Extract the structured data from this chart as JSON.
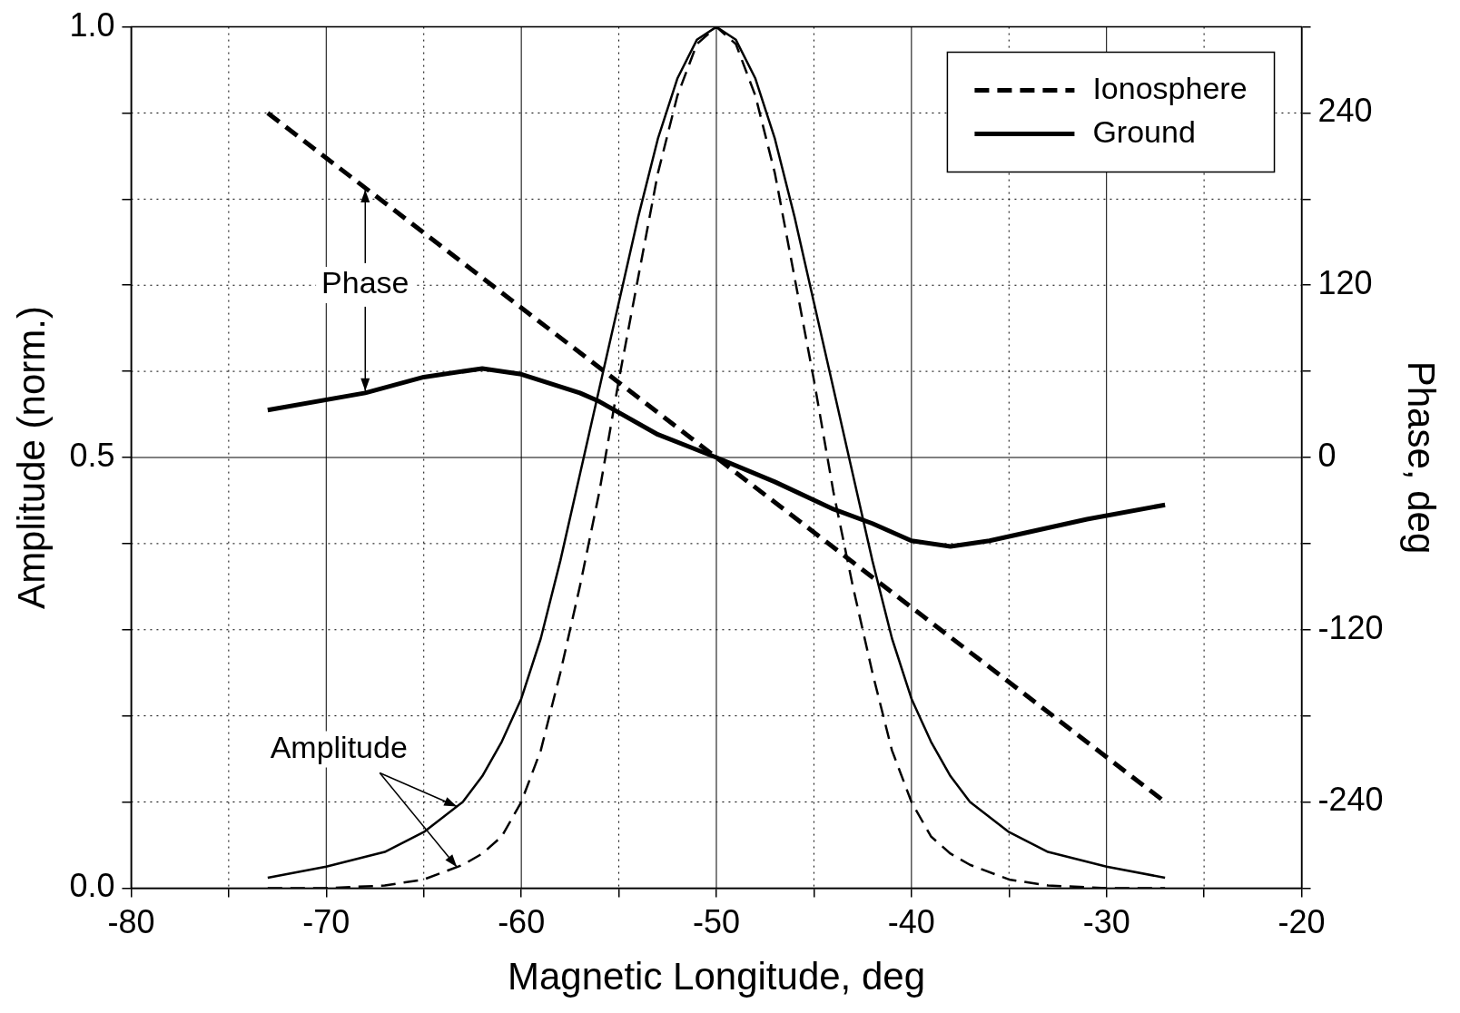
{
  "chart_data": {
    "type": "line",
    "xlabel": "Magnetic Longitude, deg",
    "ylabel": "Amplitude (norm.)",
    "y2label": "Phase, deg",
    "xlim": [
      -80,
      -20
    ],
    "xticks": [
      -80,
      {
        "value": -75,
        "label": null
      },
      -70,
      {
        "value": -65,
        "label": null
      },
      -60,
      {
        "value": -55,
        "label": null
      },
      -50,
      {
        "value": -45,
        "label": null
      },
      -40,
      {
        "value": -35,
        "label": null
      },
      -30,
      {
        "value": -25,
        "label": null
      },
      -20
    ],
    "ylim": [
      0,
      1
    ],
    "yticks": [
      {
        "value": 0,
        "label": "0.0"
      },
      {
        "value": 0.1,
        "label": null
      },
      {
        "value": 0.2,
        "label": null
      },
      {
        "value": 0.3,
        "label": null
      },
      {
        "value": 0.4,
        "label": null
      },
      {
        "value": 0.5,
        "label": "0.5"
      },
      {
        "value": 0.6,
        "label": null
      },
      {
        "value": 0.7,
        "label": null
      },
      {
        "value": 0.8,
        "label": null
      },
      {
        "value": 0.9,
        "label": null
      },
      {
        "value": 1,
        "label": "1.0"
      }
    ],
    "y2lim": [
      -300,
      300
    ],
    "y2ticks": [
      {
        "value": -300,
        "label": null
      },
      -240,
      {
        "value": -180,
        "label": null
      },
      -120,
      {
        "value": -60,
        "label": null
      },
      0,
      {
        "value": 60,
        "label": null
      },
      120,
      {
        "value": 180,
        "label": null
      },
      240,
      {
        "value": 300,
        "label": null
      }
    ],
    "grid": true,
    "legend": "top right",
    "series": [
      {
        "name": "Ionosphere",
        "color": "#000000",
        "line_style": "dashed",
        "axis": "y2",
        "x": [
          -73,
          -50,
          -27
        ],
        "values": [
          240,
          0,
          -240
        ]
      },
      {
        "name": "Ground",
        "color": "#000000",
        "line_style": "solid",
        "axis": "y2",
        "x": [
          -73,
          -68,
          -65,
          -62,
          -60,
          -57,
          -56,
          -53,
          -50,
          -47,
          -44,
          -42,
          -40,
          -38,
          -36,
          -34,
          -31,
          -27
        ],
        "values": [
          33,
          45,
          56,
          62,
          58,
          45,
          39,
          16,
          0,
          -17,
          -36,
          -46,
          -58,
          -62,
          -58,
          -52,
          -43,
          -33
        ]
      },
      {
        "color": "#000000",
        "line_style": "dashed",
        "x": [
          -73,
          -70,
          -67,
          -65,
          -63,
          -62,
          -61,
          -60,
          -59,
          -58,
          -57,
          -56,
          -55,
          -54,
          -53,
          -52,
          -51,
          -50,
          -49,
          -48,
          -47,
          -46,
          -45,
          -44,
          -43,
          -42,
          -41,
          -40,
          -39,
          -38,
          -37,
          -35,
          -33,
          -30,
          -27
        ],
        "values": [
          0,
          0,
          0.003,
          0.01,
          0.027,
          0.04,
          0.06,
          0.1,
          0.16,
          0.25,
          0.35,
          0.46,
          0.59,
          0.71,
          0.83,
          0.92,
          0.98,
          1,
          0.98,
          0.92,
          0.83,
          0.71,
          0.59,
          0.46,
          0.35,
          0.25,
          0.16,
          0.1,
          0.06,
          0.04,
          0.027,
          0.01,
          0.003,
          0,
          0
        ]
      },
      {
        "color": "#000000",
        "line_style": "solid",
        "x": [
          -73,
          -70,
          -67,
          -65,
          -63,
          -62,
          -61,
          -60,
          -59,
          -58,
          -57,
          -56,
          -55,
          -54,
          -53,
          -52,
          -51,
          -50,
          -49,
          -48,
          -47,
          -46,
          -45,
          -44,
          -43,
          -42,
          -41,
          -40,
          -39,
          -38,
          -37,
          -35,
          -33,
          -30,
          -27
        ],
        "values": [
          0.012,
          0.025,
          0.042,
          0.065,
          0.1,
          0.13,
          0.17,
          0.22,
          0.29,
          0.38,
          0.48,
          0.58,
          0.68,
          0.78,
          0.87,
          0.94,
          0.985,
          1,
          0.985,
          0.94,
          0.87,
          0.78,
          0.68,
          0.58,
          0.48,
          0.38,
          0.29,
          0.22,
          0.17,
          0.13,
          0.1,
          0.065,
          0.042,
          0.025,
          0.012
        ]
      }
    ],
    "annotations": [
      {
        "text": "Phase",
        "x": -68,
        "y": 0.575
      },
      {
        "text": "Amplitude",
        "x": -63.3,
        "y": 0.1
      }
    ]
  }
}
